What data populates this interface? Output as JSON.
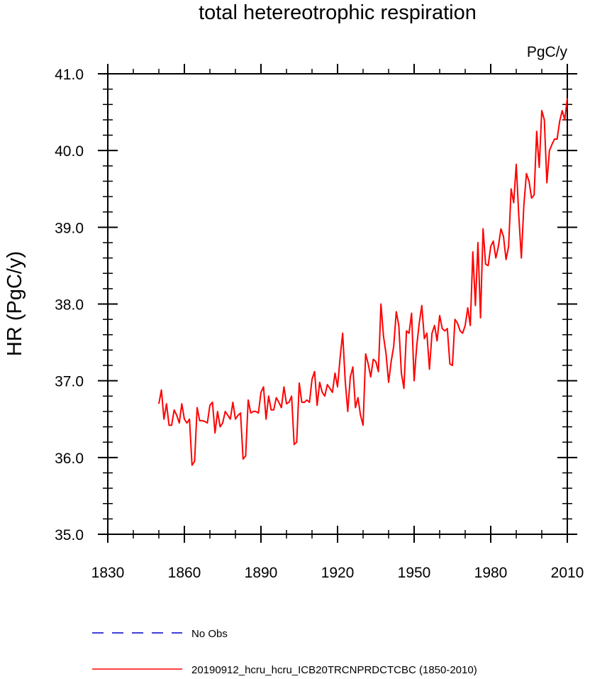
{
  "chart_data": {
    "type": "line",
    "title": "total hetereotrophic respiration",
    "units_label": "PgC/y",
    "xlabel": "",
    "ylabel": "HR  (PgC/y)",
    "xlim": [
      1830,
      2010
    ],
    "ylim": [
      35.0,
      41.0
    ],
    "x_ticks": [
      1830,
      1860,
      1890,
      1920,
      1950,
      1980,
      2010
    ],
    "x_tick_labels": [
      "1830",
      "1860",
      "1890",
      "1920",
      "1950",
      "1980",
      "2010"
    ],
    "y_ticks": [
      35.0,
      36.0,
      37.0,
      38.0,
      39.0,
      40.0,
      41.0
    ],
    "y_tick_labels": [
      "35.0",
      "36.0",
      "37.0",
      "38.0",
      "39.0",
      "40.0",
      "41.0"
    ],
    "grid": false,
    "legend": [
      {
        "name": "No Obs",
        "color": "#0000cc",
        "style": "dashed"
      },
      {
        "name": "20190912_hcru_hcru_ICB20TRCNPRDCTCBC (1850-2010)",
        "color": "#ff0000",
        "style": "solid"
      }
    ],
    "series": [
      {
        "name": "20190912_hcru_hcru_ICB20TRCNPRDCTCBC (1850-2010)",
        "color": "#ff0000",
        "x_start": 1850,
        "x_step": 1,
        "values": [
          36.7,
          36.88,
          36.5,
          36.7,
          36.42,
          36.42,
          36.62,
          36.55,
          36.45,
          36.7,
          36.5,
          36.45,
          36.5,
          35.9,
          35.95,
          36.65,
          36.48,
          36.48,
          36.47,
          36.45,
          36.68,
          36.72,
          36.32,
          36.6,
          36.4,
          36.45,
          36.6,
          36.55,
          36.5,
          36.72,
          36.5,
          36.55,
          36.58,
          35.98,
          36.02,
          36.75,
          36.58,
          36.6,
          36.6,
          36.58,
          36.85,
          36.92,
          36.5,
          36.8,
          36.62,
          36.62,
          36.78,
          36.72,
          36.65,
          36.92,
          36.7,
          36.72,
          36.8,
          36.17,
          36.2,
          36.97,
          36.72,
          36.72,
          36.75,
          36.72,
          37.02,
          37.12,
          36.68,
          36.98,
          36.85,
          36.8,
          36.95,
          36.9,
          36.85,
          37.1,
          36.92,
          37.3,
          37.62,
          37.0,
          36.6,
          37.05,
          37.18,
          36.65,
          36.78,
          36.55,
          36.42,
          37.35,
          37.22,
          37.05,
          37.28,
          37.25,
          37.12,
          38.0,
          37.58,
          37.35,
          36.98,
          37.25,
          37.45,
          37.9,
          37.72,
          37.1,
          36.9,
          37.65,
          37.62,
          37.88,
          37.0,
          37.45,
          37.75,
          37.98,
          37.55,
          37.62,
          37.15,
          37.62,
          37.72,
          37.52,
          37.85,
          37.68,
          37.65,
          37.68,
          37.22,
          37.2,
          37.8,
          37.75,
          37.65,
          37.62,
          37.72,
          37.95,
          37.72,
          38.68,
          37.98,
          38.8,
          37.82,
          38.98,
          38.52,
          38.5,
          38.75,
          38.82,
          38.6,
          38.75,
          38.98,
          38.88,
          38.58,
          38.75,
          39.5,
          39.32,
          39.82,
          39.15,
          38.6,
          39.3,
          39.7,
          39.6,
          39.38,
          39.42,
          40.25,
          39.78,
          40.52,
          40.4,
          39.58,
          40.0,
          40.08,
          40.15,
          40.15,
          40.38,
          40.52,
          40.4,
          40.68
        ]
      }
    ]
  }
}
